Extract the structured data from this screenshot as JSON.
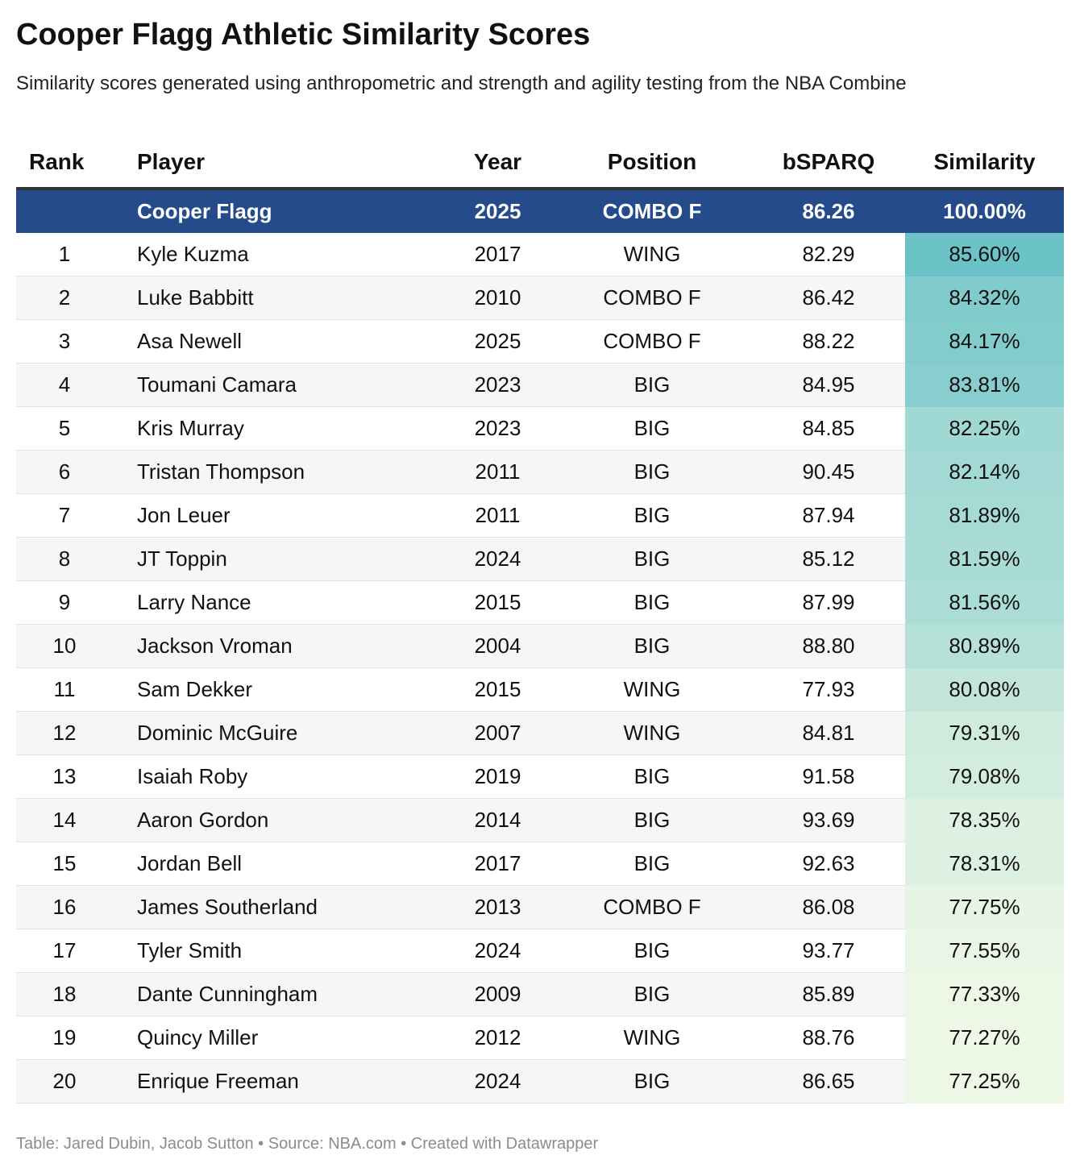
{
  "title": "Cooper Flagg Athletic Similarity Scores",
  "subtitle": "Similarity scores generated using anthropometric and strength and agility testing from the NBA Combine",
  "footer": "Table: Jared Dubin, Jacob Sutton • Source: NBA.com • Created with Datawrapper",
  "colors": {
    "header_row": "#264b8a",
    "sim_high": "#6cc3c7",
    "sim_low": "#eef8e6"
  },
  "chart_data": {
    "type": "table",
    "columns": [
      "Rank",
      "Player",
      "Year",
      "Position",
      "bSPARQ",
      "Similarity"
    ],
    "highlight": {
      "rank": "",
      "player": "Cooper Flagg",
      "year": "2025",
      "position": "COMBO F",
      "bsparq": "86.26",
      "similarity": "100.00%"
    },
    "rows": [
      {
        "rank": "1",
        "player": "Kyle Kuzma",
        "year": "2017",
        "position": "WING",
        "bsparq": "82.29",
        "similarity": "85.60%"
      },
      {
        "rank": "2",
        "player": "Luke Babbitt",
        "year": "2010",
        "position": "COMBO F",
        "bsparq": "86.42",
        "similarity": "84.32%"
      },
      {
        "rank": "3",
        "player": "Asa Newell",
        "year": "2025",
        "position": "COMBO F",
        "bsparq": "88.22",
        "similarity": "84.17%"
      },
      {
        "rank": "4",
        "player": "Toumani Camara",
        "year": "2023",
        "position": "BIG",
        "bsparq": "84.95",
        "similarity": "83.81%"
      },
      {
        "rank": "5",
        "player": "Kris Murray",
        "year": "2023",
        "position": "BIG",
        "bsparq": "84.85",
        "similarity": "82.25%"
      },
      {
        "rank": "6",
        "player": "Tristan Thompson",
        "year": "2011",
        "position": "BIG",
        "bsparq": "90.45",
        "similarity": "82.14%"
      },
      {
        "rank": "7",
        "player": "Jon Leuer",
        "year": "2011",
        "position": "BIG",
        "bsparq": "87.94",
        "similarity": "81.89%"
      },
      {
        "rank": "8",
        "player": "JT Toppin",
        "year": "2024",
        "position": "BIG",
        "bsparq": "85.12",
        "similarity": "81.59%"
      },
      {
        "rank": "9",
        "player": "Larry Nance",
        "year": "2015",
        "position": "BIG",
        "bsparq": "87.99",
        "similarity": "81.56%"
      },
      {
        "rank": "10",
        "player": "Jackson Vroman",
        "year": "2004",
        "position": "BIG",
        "bsparq": "88.80",
        "similarity": "80.89%"
      },
      {
        "rank": "11",
        "player": "Sam Dekker",
        "year": "2015",
        "position": "WING",
        "bsparq": "77.93",
        "similarity": "80.08%"
      },
      {
        "rank": "12",
        "player": "Dominic McGuire",
        "year": "2007",
        "position": "WING",
        "bsparq": "84.81",
        "similarity": "79.31%"
      },
      {
        "rank": "13",
        "player": "Isaiah Roby",
        "year": "2019",
        "position": "BIG",
        "bsparq": "91.58",
        "similarity": "79.08%"
      },
      {
        "rank": "14",
        "player": "Aaron Gordon",
        "year": "2014",
        "position": "BIG",
        "bsparq": "93.69",
        "similarity": "78.35%"
      },
      {
        "rank": "15",
        "player": "Jordan Bell",
        "year": "2017",
        "position": "BIG",
        "bsparq": "92.63",
        "similarity": "78.31%"
      },
      {
        "rank": "16",
        "player": "James Southerland",
        "year": "2013",
        "position": "COMBO F",
        "bsparq": "86.08",
        "similarity": "77.75%"
      },
      {
        "rank": "17",
        "player": "Tyler Smith",
        "year": "2024",
        "position": "BIG",
        "bsparq": "93.77",
        "similarity": "77.55%"
      },
      {
        "rank": "18",
        "player": "Dante Cunningham",
        "year": "2009",
        "position": "BIG",
        "bsparq": "85.89",
        "similarity": "77.33%"
      },
      {
        "rank": "19",
        "player": "Quincy Miller",
        "year": "2012",
        "position": "WING",
        "bsparq": "88.76",
        "similarity": "77.27%"
      },
      {
        "rank": "20",
        "player": "Enrique Freeman",
        "year": "2024",
        "position": "BIG",
        "bsparq": "86.65",
        "similarity": "77.25%"
      }
    ]
  }
}
